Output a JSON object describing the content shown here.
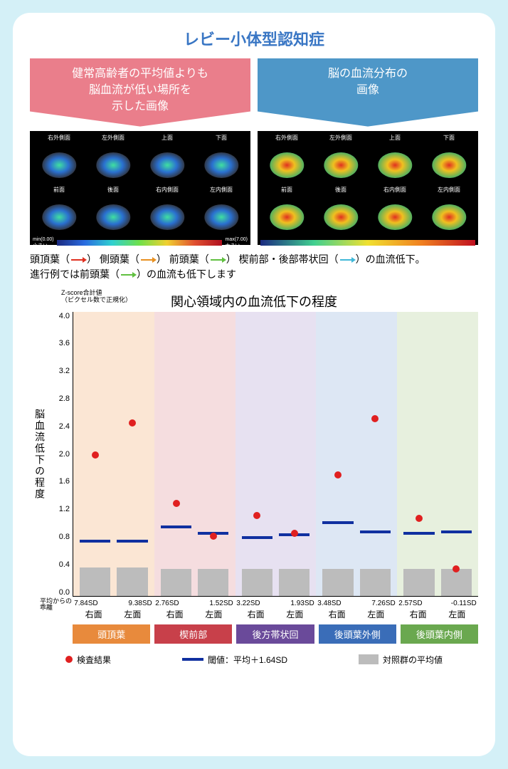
{
  "title": "レビー小体型認知症",
  "headers": {
    "left": "健常高齢者の平均値よりも\n脳血流が低い場所を\n示した画像",
    "right": "脳の血流分布の\n画像"
  },
  "brain_views": [
    "右外側面",
    "左外側面",
    "上面",
    "下面",
    "前面",
    "後面",
    "右内側面",
    "左内側面"
  ],
  "brain_sublabels": {
    "l": "右",
    "r": "左"
  },
  "colorbar_left": {
    "min": "min(0.00)\n小さい",
    "label": "脳血流低下の程度 Z-score",
    "max": "max(7.00)\n大きい"
  },
  "arrows_desc": {
    "line1_a": "頭頂葉（",
    "line1_b": "） 側頭葉（",
    "line1_c": "） 前頭葉（",
    "line1_d": "） 楔前部・後部帯状回（",
    "line1_e": "）の血流低下。",
    "line2_a": "進行例では前頭葉（",
    "line2_b": "）の血流も低下します"
  },
  "chart": {
    "title": "関心領域内の血流低下の程度",
    "sub": "Z-score合計値\n（ピクセル数で正規化）",
    "ylabel": "脳血流低下の程度",
    "ylim": [
      0.0,
      4.2
    ],
    "yticks": [
      "0.0",
      "0.4",
      "0.8",
      "1.2",
      "1.6",
      "2.0",
      "2.4",
      "2.8",
      "3.2",
      "3.6",
      "4.0"
    ],
    "sd_row_label": "平均からの\n乖離",
    "side_labels": [
      "右面",
      "左面"
    ],
    "regions": [
      {
        "name": "頭頂葉",
        "color": "#e88a3c",
        "bg": "#fbe6d4",
        "sd": [
          "7.84SD",
          "9.38SD"
        ],
        "bars": [
          0.42,
          0.42
        ],
        "thresh": [
          0.78,
          0.78
        ],
        "dots": [
          2.08,
          2.55
        ]
      },
      {
        "name": "楔前部",
        "color": "#c8404a",
        "bg": "#f5dddf",
        "sd": [
          "2.76SD",
          "1.52SD"
        ],
        "bars": [
          0.4,
          0.4
        ],
        "thresh": [
          1.0,
          0.9
        ],
        "dots": [
          1.36,
          0.88
        ]
      },
      {
        "name": "後方帯状回",
        "color": "#6a4a9a",
        "bg": "#e7e1f1",
        "sd": [
          "3.22SD",
          "1.93SD"
        ],
        "bars": [
          0.4,
          0.4
        ],
        "thresh": [
          0.84,
          0.88
        ],
        "dots": [
          1.18,
          0.92
        ]
      },
      {
        "name": "後頭葉外側",
        "color": "#3a6db8",
        "bg": "#dde7f4",
        "sd": [
          "3.48SD",
          "7.26SD"
        ],
        "bars": [
          0.4,
          0.4
        ],
        "thresh": [
          1.06,
          0.92
        ],
        "dots": [
          1.78,
          2.62
        ]
      },
      {
        "name": "後頭葉内側",
        "color": "#6aa84f",
        "bg": "#e7f0de",
        "sd": [
          "2.57SD",
          "-0.11SD"
        ],
        "bars": [
          0.4,
          0.4
        ],
        "thresh": [
          0.9,
          0.92
        ],
        "dots": [
          1.14,
          0.4
        ]
      }
    ],
    "legend": {
      "dot": "検査結果",
      "line": "閾値：平均＋1.64SD",
      "bar": "対照群の平均値"
    }
  }
}
